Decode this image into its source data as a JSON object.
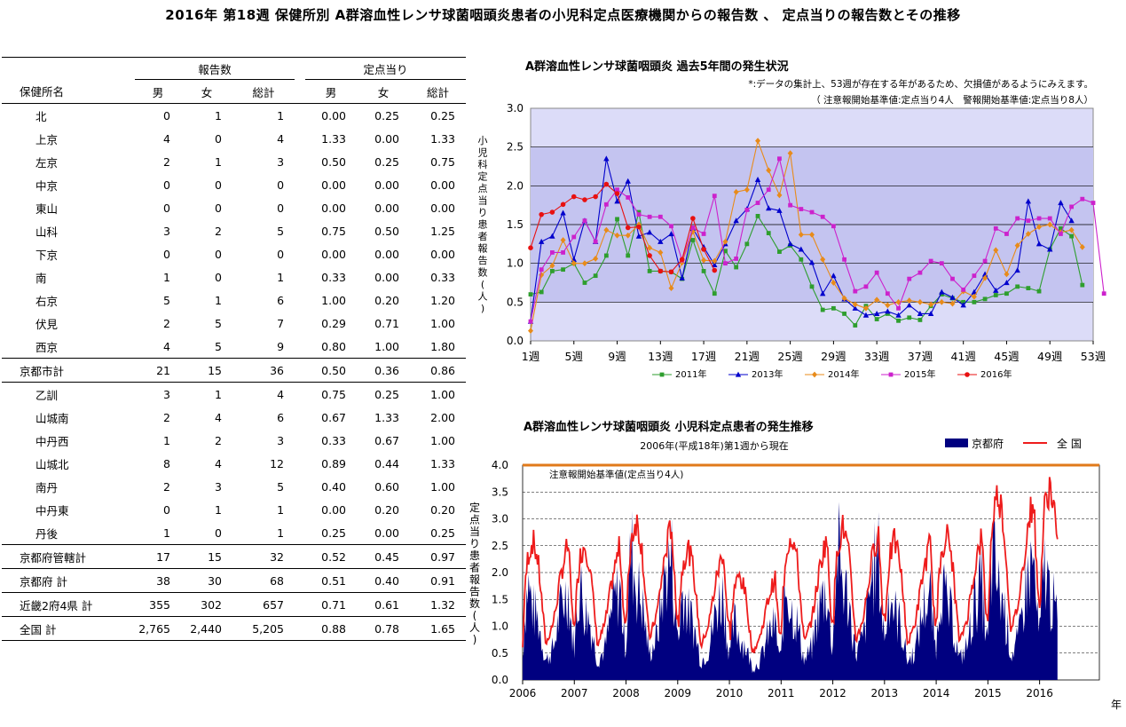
{
  "page": {
    "title": "2016年 第18週 保健所別 A群溶血性レンサ球菌咽頭炎患者の小児科定点医療機関からの報告数 、 定点当りの報告数とその推移"
  },
  "table": {
    "group_reports": "報告数",
    "group_per_point": "定点当り",
    "col_name": "保健所名",
    "col_male": "男",
    "col_female": "女",
    "col_total": "総計",
    "rows": [
      {
        "name": "北",
        "m": "0",
        "f": "1",
        "t": "1",
        "pm": "0.00",
        "pf": "0.25",
        "pt": "0.25",
        "kind": "sub"
      },
      {
        "name": "上京",
        "m": "4",
        "f": "0",
        "t": "4",
        "pm": "1.33",
        "pf": "0.00",
        "pt": "1.33",
        "kind": "sub"
      },
      {
        "name": "左京",
        "m": "2",
        "f": "1",
        "t": "3",
        "pm": "0.50",
        "pf": "0.25",
        "pt": "0.75",
        "kind": "sub"
      },
      {
        "name": "中京",
        "m": "0",
        "f": "0",
        "t": "0",
        "pm": "0.00",
        "pf": "0.00",
        "pt": "0.00",
        "kind": "sub"
      },
      {
        "name": "東山",
        "m": "0",
        "f": "0",
        "t": "0",
        "pm": "0.00",
        "pf": "0.00",
        "pt": "0.00",
        "kind": "sub"
      },
      {
        "name": "山科",
        "m": "3",
        "f": "2",
        "t": "5",
        "pm": "0.75",
        "pf": "0.50",
        "pt": "1.25",
        "kind": "sub"
      },
      {
        "name": "下京",
        "m": "0",
        "f": "0",
        "t": "0",
        "pm": "0.00",
        "pf": "0.00",
        "pt": "0.00",
        "kind": "sub"
      },
      {
        "name": "南",
        "m": "1",
        "f": "0",
        "t": "1",
        "pm": "0.33",
        "pf": "0.00",
        "pt": "0.33",
        "kind": "sub"
      },
      {
        "name": "右京",
        "m": "5",
        "f": "1",
        "t": "6",
        "pm": "1.00",
        "pf": "0.20",
        "pt": "1.20",
        "kind": "sub"
      },
      {
        "name": "伏見",
        "m": "2",
        "f": "5",
        "t": "7",
        "pm": "0.29",
        "pf": "0.71",
        "pt": "1.00",
        "kind": "sub"
      },
      {
        "name": "西京",
        "m": "4",
        "f": "5",
        "t": "9",
        "pm": "0.80",
        "pf": "1.00",
        "pt": "1.80",
        "kind": "sub"
      },
      {
        "name": "京都市計",
        "m": "21",
        "f": "15",
        "t": "36",
        "pm": "0.50",
        "pf": "0.36",
        "pt": "0.86",
        "kind": "total"
      },
      {
        "name": "乙訓",
        "m": "3",
        "f": "1",
        "t": "4",
        "pm": "0.75",
        "pf": "0.25",
        "pt": "1.00",
        "kind": "sub"
      },
      {
        "name": "山城南",
        "m": "2",
        "f": "4",
        "t": "6",
        "pm": "0.67",
        "pf": "1.33",
        "pt": "2.00",
        "kind": "sub"
      },
      {
        "name": "中丹西",
        "m": "1",
        "f": "2",
        "t": "3",
        "pm": "0.33",
        "pf": "0.67",
        "pt": "1.00",
        "kind": "sub"
      },
      {
        "name": "山城北",
        "m": "8",
        "f": "4",
        "t": "12",
        "pm": "0.89",
        "pf": "0.44",
        "pt": "1.33",
        "kind": "sub"
      },
      {
        "name": "南丹",
        "m": "2",
        "f": "3",
        "t": "5",
        "pm": "0.40",
        "pf": "0.60",
        "pt": "1.00",
        "kind": "sub"
      },
      {
        "name": "中丹東",
        "m": "0",
        "f": "1",
        "t": "1",
        "pm": "0.00",
        "pf": "0.20",
        "pt": "0.20",
        "kind": "sub"
      },
      {
        "name": "丹後",
        "m": "1",
        "f": "0",
        "t": "1",
        "pm": "0.25",
        "pf": "0.00",
        "pt": "0.25",
        "kind": "sub"
      },
      {
        "name": "京都府管轄計",
        "m": "17",
        "f": "15",
        "t": "32",
        "pm": "0.52",
        "pf": "0.45",
        "pt": "0.97",
        "kind": "total"
      },
      {
        "name": "京都府 計",
        "m": "38",
        "f": "30",
        "t": "68",
        "pm": "0.51",
        "pf": "0.40",
        "pt": "0.91",
        "kind": "total"
      },
      {
        "name": "近畿2府4県 計",
        "m": "355",
        "f": "302",
        "t": "657",
        "pm": "0.71",
        "pf": "0.61",
        "pt": "1.32",
        "kind": "total"
      },
      {
        "name": "全国 計",
        "m": "2,765",
        "f": "2,440",
        "t": "5,205",
        "pm": "0.88",
        "pf": "0.78",
        "pt": "1.65",
        "kind": "total"
      }
    ]
  },
  "chart_data": [
    {
      "type": "line",
      "title": "A群溶血性レンサ球菌咽頭炎 過去5年間の発生状況",
      "note1": "*:データの集計上、53週が存在する年があるため、欠損値があるようにみえます。",
      "note2": "（ 注意報開始基準値:定点当り4人　警報開始基準値:定点当り8人）",
      "ylabel": "小児科定点当り患者報告数(人)",
      "ylim": [
        0,
        30
      ],
      "yticks": [
        "0.0",
        "0.5",
        "1.0",
        "1.5",
        "2.0",
        "2.5",
        "3.0"
      ],
      "ytick_values": [
        0,
        5,
        10,
        15,
        20,
        25,
        30
      ],
      "xticks": [
        "1週",
        "5週",
        "9週",
        "13週",
        "17週",
        "21週",
        "25週",
        "29週",
        "33週",
        "37週",
        "41週",
        "45週",
        "49週",
        "53週"
      ],
      "xtick_weeks": [
        1,
        5,
        9,
        13,
        17,
        21,
        25,
        29,
        33,
        37,
        41,
        45,
        49,
        53
      ],
      "legend_position": "bottom",
      "colors": {
        "bg": "#dcdcf8",
        "band": "#c4c4f0"
      },
      "series": [
        {
          "name": "2011年",
          "color": "#2e9e2e",
          "marker": "square",
          "values": [
            6,
            6.3,
            9,
            9.2,
            10,
            7.5,
            8.4,
            11,
            15.7,
            11,
            16.6,
            9,
            9,
            8.9,
            8,
            13,
            9,
            6.1,
            11.6,
            9.5,
            12.5,
            16.1,
            13.9,
            11.5,
            12.3,
            10.5,
            7,
            4,
            4.2,
            3.5,
            2,
            4.5,
            2.8,
            3.5,
            2.6,
            3,
            2.7,
            4.5,
            6,
            5.5,
            5,
            5,
            5.4,
            5.9,
            6.1,
            7,
            6.8,
            6.4,
            11.8,
            14.5,
            13.5,
            7.2
          ]
        },
        {
          "name": "2013年",
          "color": "#0000cc",
          "marker": "triangle",
          "values": [
            2.5,
            12.8,
            13.5,
            16.5,
            10.5,
            15.5,
            12.8,
            23.5,
            18,
            20.6,
            13.5,
            14,
            12.8,
            13.8,
            8.1,
            14.5,
            12.1,
            9.8,
            12.5,
            15.5,
            17,
            20.8,
            17.1,
            16.8,
            12.5,
            11.8,
            10.1,
            6.1,
            8.4,
            5.4,
            4.2,
            3.3,
            3.5,
            3.8,
            3.3,
            4.6,
            3.5,
            3.5,
            6.3,
            5.6,
            4.6,
            6.3,
            8.6,
            6.5,
            7.5,
            9.1,
            18,
            12.5,
            11.8,
            17.8,
            15.5
          ]
        },
        {
          "name": "2014年",
          "color": "#e88b1a",
          "marker": "diamond",
          "values": [
            1.3,
            8.5,
            9.7,
            13,
            10,
            10,
            10.6,
            14.3,
            13.6,
            13.6,
            15,
            12,
            11.4,
            6.8,
            10.1,
            14.1,
            10.4,
            10.3,
            12.8,
            19.2,
            19.5,
            25.8,
            22,
            18.8,
            24.2,
            13.7,
            13.7,
            10.5,
            7.5,
            5.5,
            4.7,
            4.2,
            5.3,
            4.6,
            5,
            5.2,
            5,
            4.7,
            5,
            4.8,
            6.4,
            5.7,
            8.1,
            11.7,
            8.6,
            12.3,
            13.8,
            14.7,
            15,
            14,
            14.3,
            12.1
          ]
        },
        {
          "name": "2015年",
          "color": "#cc22cc",
          "marker": "square",
          "values": [
            2.5,
            9.2,
            11.4,
            11.4,
            13.4,
            15.5,
            12.8,
            17.6,
            19.5,
            18.5,
            16.3,
            16,
            16,
            14.8,
            10.4,
            14.6,
            13.8,
            18.7,
            10,
            10.6,
            16.9,
            17.8,
            19.5,
            23.5,
            17.5,
            17,
            16.6,
            16,
            14.8,
            10.5,
            6.4,
            7,
            8.8,
            6.1,
            4.2,
            8,
            8.8,
            10.3,
            10,
            8,
            6.6,
            8.4,
            10.3,
            14.5,
            13.8,
            15.8,
            15.5,
            15.8,
            15.8,
            13.8,
            17.3,
            18.3,
            17.8,
            6.1
          ]
        },
        {
          "name": "2016年",
          "color": "#e81010",
          "marker": "circle",
          "values": [
            12,
            16.3,
            16.6,
            17.6,
            18.6,
            18.2,
            18.6,
            20.2,
            19,
            14.6,
            14.7,
            11,
            9,
            8.9,
            10.5,
            15.8,
            11.8,
            9.1
          ]
        }
      ]
    },
    {
      "type": "area",
      "title": "A群溶血性レンサ球菌咽頭炎 小児科定点患者の発生推移",
      "subtitle": "2006年(平成18年)第1週から現在",
      "ylabel": "定点当り患者報告数(人)",
      "xlabel": "年",
      "ylim": [
        0,
        4.0
      ],
      "yticks": [
        "0.0",
        "0.5",
        "1.0",
        "1.5",
        "2.0",
        "2.5",
        "3.0",
        "3.5",
        "4.0"
      ],
      "xticks": [
        "2006",
        "2007",
        "2008",
        "2009",
        "2010",
        "2011",
        "2012",
        "2013",
        "2014",
        "2015",
        "2016"
      ],
      "threshold": {
        "label": "注意報開始基準値(定点当り4人)",
        "value": 4.0,
        "color": "#e07a1a"
      },
      "legend_position": "top-right",
      "series_names": {
        "kyoto": "京都府",
        "national": "全 国"
      },
      "colors": {
        "kyoto": "#000080",
        "national": "#ee1c1c"
      },
      "x_start_year": 2006,
      "x_end_year": 2016.35,
      "kyoto_profile": [
        [
          0,
          0.4
        ],
        [
          0.04,
          1.2
        ],
        [
          0.1,
          1.8
        ],
        [
          0.2,
          1.3
        ],
        [
          0.3,
          1.1
        ],
        [
          0.45,
          0.35
        ],
        [
          0.6,
          0.6
        ],
        [
          0.75,
          1.4
        ],
        [
          0.88,
          1.7
        ],
        [
          0.97,
          0.7
        ]
      ],
      "national_profile": [
        [
          0,
          0.6
        ],
        [
          0.04,
          1.6
        ],
        [
          0.1,
          2.3
        ],
        [
          0.2,
          2.6
        ],
        [
          0.3,
          2.2
        ],
        [
          0.45,
          0.65
        ],
        [
          0.6,
          1.1
        ],
        [
          0.75,
          2.0
        ],
        [
          0.88,
          2.55
        ],
        [
          0.97,
          1.1
        ]
      ],
      "year_peak_scale": [
        {
          "year": 2006,
          "k": 1.0,
          "n": 1.0
        },
        {
          "year": 2007,
          "k": 1.0,
          "n": 0.98
        },
        {
          "year": 2008,
          "k": 1.35,
          "n": 1.15
        },
        {
          "year": 2009,
          "k": 0.95,
          "n": 0.95
        },
        {
          "year": 2010,
          "k": 0.6,
          "n": 0.75
        },
        {
          "year": 2011,
          "k": 1.0,
          "n": 1.05
        },
        {
          "year": 2012,
          "k": 1.35,
          "n": 1.1
        },
        {
          "year": 2013,
          "k": 0.95,
          "n": 1.0
        },
        {
          "year": 2014,
          "k": 1.05,
          "n": 1.05
        },
        {
          "year": 2015,
          "k": 1.3,
          "n": 1.35
        },
        {
          "year": 2016,
          "k": 1.2,
          "n": 1.4
        }
      ]
    }
  ]
}
